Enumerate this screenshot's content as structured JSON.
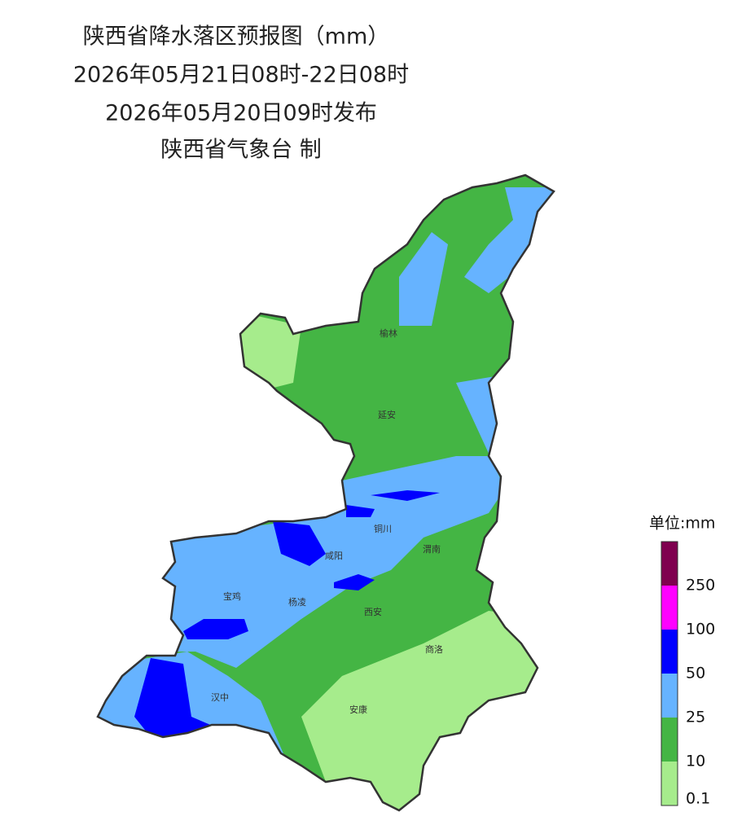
{
  "header": {
    "title": "陕西省降水落区预报图（mm）",
    "period": "2026年05月21日08时-22日08时",
    "issued": "2026年05月20日09时发布",
    "issuer": "陕西省气象台 制"
  },
  "cities": [
    {
      "label": "榆林"
    },
    {
      "label": "延安"
    },
    {
      "label": "铜川"
    },
    {
      "label": "渭南"
    },
    {
      "label": "咸阳"
    },
    {
      "label": "宝鸡"
    },
    {
      "label": "杨凌"
    },
    {
      "label": "西安"
    },
    {
      "label": "商洛"
    },
    {
      "label": "汉中"
    },
    {
      "label": "安康"
    }
  ],
  "legend": {
    "title": "单位:mm",
    "colors": [
      "#7f004f",
      "#ff00ff",
      "#0000ff",
      "#66b3ff",
      "#44b544",
      "#a6ec8c"
    ],
    "labels": [
      "250",
      "100",
      "50",
      "25",
      "10",
      "0.1"
    ]
  }
}
